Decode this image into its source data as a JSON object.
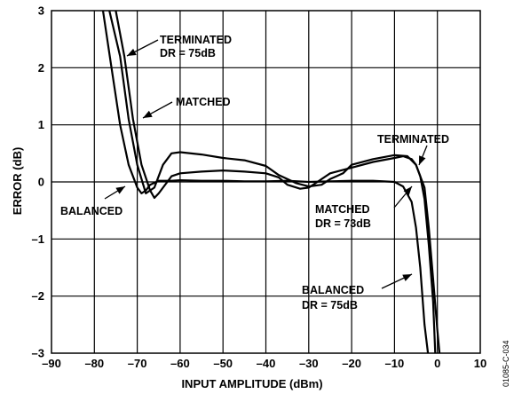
{
  "chart_data": {
    "type": "line",
    "xlabel": "INPUT AMPLITUDE (dBm)",
    "ylabel": "ERROR (dB)",
    "xlim": [
      -90,
      10
    ],
    "ylim": [
      -3,
      3
    ],
    "xticks": [
      -90,
      -80,
      -70,
      -60,
      -50,
      -40,
      -30,
      -20,
      -10,
      0,
      10
    ],
    "yticks": [
      -3,
      -2,
      -1,
      0,
      1,
      2,
      3
    ],
    "xtick_labels": [
      "–90",
      "–80",
      "–70",
      "–60",
      "–50",
      "–40",
      "–30",
      "–20",
      "–10",
      "0",
      "10"
    ],
    "ytick_labels": [
      "–3",
      "–2",
      "–1",
      "0",
      "1",
      "2",
      "3"
    ],
    "grid": true,
    "series": [
      {
        "name": "TERMINATED",
        "x": [
          -76.5,
          -74,
          -72,
          -70,
          -68,
          -66,
          -64,
          -62,
          -60,
          -55,
          -50,
          -45,
          -40,
          -37,
          -35,
          -33,
          -30,
          -27,
          -25,
          -22,
          -20,
          -15,
          -10,
          -7,
          -5,
          -3,
          -2,
          -1,
          0,
          0.5
        ],
        "y": [
          3,
          2.2,
          1.1,
          0.3,
          -0.2,
          -0.1,
          0.3,
          0.5,
          0.52,
          0.48,
          0.42,
          0.38,
          0.28,
          0.12,
          0.05,
          -0.02,
          -0.08,
          -0.05,
          0.05,
          0.15,
          0.3,
          0.4,
          0.47,
          0.45,
          0.3,
          -0.1,
          -0.8,
          -1.7,
          -2.6,
          -3
        ]
      },
      {
        "name": "MATCHED",
        "x": [
          -75,
          -73,
          -71,
          -69,
          -67,
          -66,
          -65,
          -62,
          -60,
          -55,
          -50,
          -45,
          -40,
          -37,
          -35,
          -32,
          -30,
          -28,
          -25,
          -20,
          -15,
          -10,
          -8,
          -6,
          -5,
          -4,
          -3,
          -2,
          -1,
          -0.5
        ],
        "y": [
          3,
          2.2,
          1.1,
          0.3,
          -0.15,
          -0.28,
          -0.2,
          0.1,
          0.15,
          0.18,
          0.2,
          0.18,
          0.15,
          0.08,
          -0.05,
          -0.12,
          -0.1,
          0,
          0.15,
          0.25,
          0.35,
          0.42,
          0.45,
          0.4,
          0.3,
          0.1,
          -0.3,
          -1.1,
          -2.1,
          -3
        ]
      },
      {
        "name": "BALANCED",
        "x": [
          -78,
          -76,
          -74,
          -72,
          -70,
          -69,
          -68,
          -67,
          -65,
          -62,
          -60,
          -55,
          -50,
          -45,
          -40,
          -35,
          -30,
          -25,
          -20,
          -15,
          -10,
          -8,
          -6,
          -5,
          -4,
          -3.5,
          -3,
          -2.2
        ],
        "y": [
          3,
          2.0,
          1.0,
          0.3,
          -0.1,
          -0.2,
          -0.15,
          -0.05,
          0.02,
          0.02,
          0.03,
          0.02,
          0.02,
          0.01,
          0.01,
          0.02,
          0.0,
          0.01,
          0.02,
          0.02,
          0,
          -0.08,
          -0.35,
          -0.8,
          -1.5,
          -2.0,
          -2.5,
          -3
        ]
      }
    ],
    "annotations": [
      {
        "text": "TERMINATED",
        "text2": "DR = 75dB"
      },
      {
        "text": "MATCHED"
      },
      {
        "text": "BALANCED"
      },
      {
        "text": "TERMINATED"
      },
      {
        "text": "MATCHED",
        "text2": "DR = 73dB"
      },
      {
        "text": "BALANCED",
        "text2": "DR = 75dB"
      }
    ],
    "figure_id": "01085-C-034"
  }
}
